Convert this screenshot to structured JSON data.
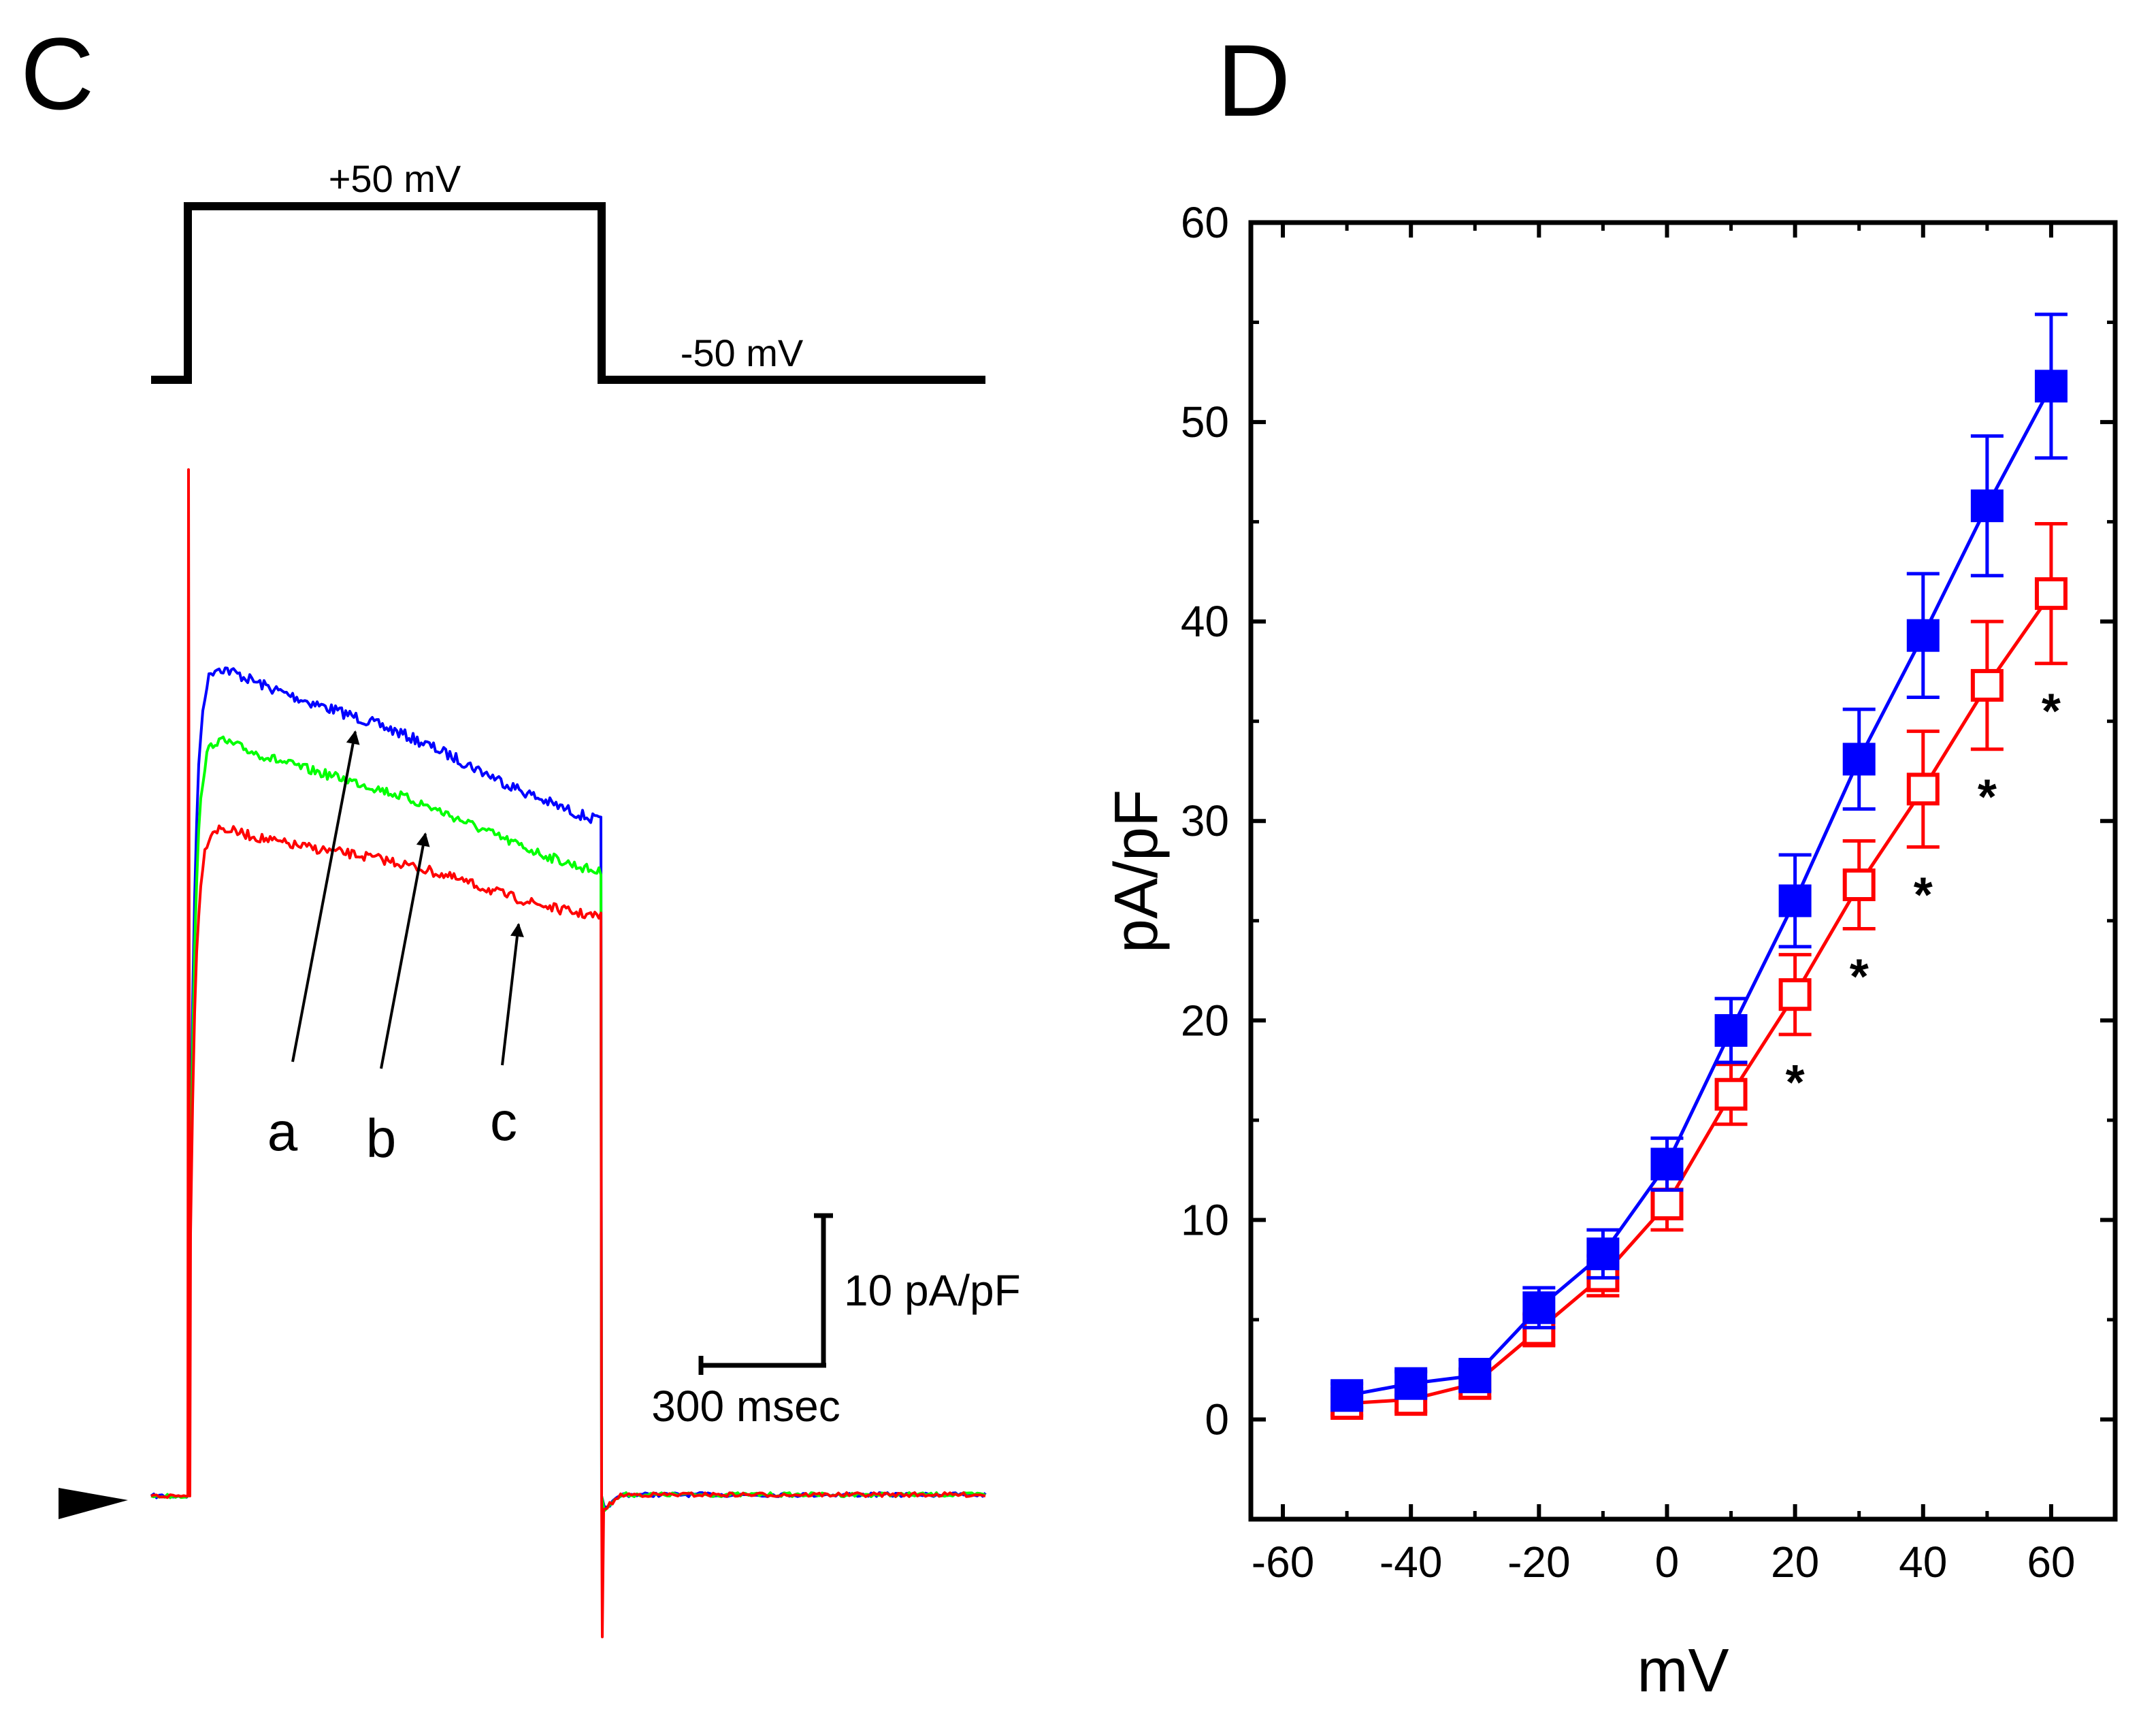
{
  "panels": {
    "left_letter": "C",
    "right_letter": "D"
  },
  "protocol": {
    "step_label": "+50 mV",
    "hold_label": "-50 mV"
  },
  "traces": {
    "labels": [
      "a",
      "b",
      "c"
    ],
    "colors": {
      "a": "#0000ff",
      "b": "#00ff00",
      "c": "#ff0000"
    }
  },
  "scale_bar": {
    "vertical_label": "10 pA/pF",
    "horizontal_label": "300 msec"
  },
  "marker_icon": "triangle-arrowhead-icon",
  "chart_data": {
    "type": "line",
    "xlabel": "mV",
    "ylabel": "pA/pF",
    "xlim": [
      -65,
      70
    ],
    "ylim": [
      -5,
      60
    ],
    "xticks": [
      -60,
      -40,
      -20,
      0,
      20,
      40,
      60
    ],
    "yticks": [
      0,
      10,
      20,
      30,
      40,
      50,
      60
    ],
    "x": [
      -50,
      -40,
      -30,
      -20,
      -10,
      0,
      10,
      20,
      30,
      40,
      50,
      60
    ],
    "series": [
      {
        "marker": "filled-square",
        "color": "#0000ff",
        "values": [
          1.2,
          1.8,
          2.2,
          5.6,
          8.3,
          12.8,
          19.5,
          26.0,
          33.1,
          39.3,
          45.8,
          51.8
        ],
        "errors": [
          0.6,
          0.6,
          0.8,
          1.0,
          1.2,
          1.3,
          1.6,
          2.3,
          2.5,
          3.1,
          3.5,
          3.6
        ]
      },
      {
        "marker": "open-square",
        "color": "#ff0000",
        "values": [
          0.8,
          1.0,
          1.8,
          4.5,
          7.2,
          10.8,
          16.3,
          21.3,
          26.8,
          31.6,
          36.8,
          41.4
        ],
        "errors": [
          0.6,
          0.6,
          0.7,
          0.8,
          1.0,
          1.3,
          1.5,
          2.0,
          2.2,
          2.9,
          3.2,
          3.5
        ]
      }
    ],
    "significance_marks": [
      {
        "x": 20,
        "label": "*"
      },
      {
        "x": 30,
        "label": "*"
      },
      {
        "x": 40,
        "label": "*"
      },
      {
        "x": 50,
        "label": "*"
      },
      {
        "x": 60,
        "label": "*"
      }
    ]
  }
}
